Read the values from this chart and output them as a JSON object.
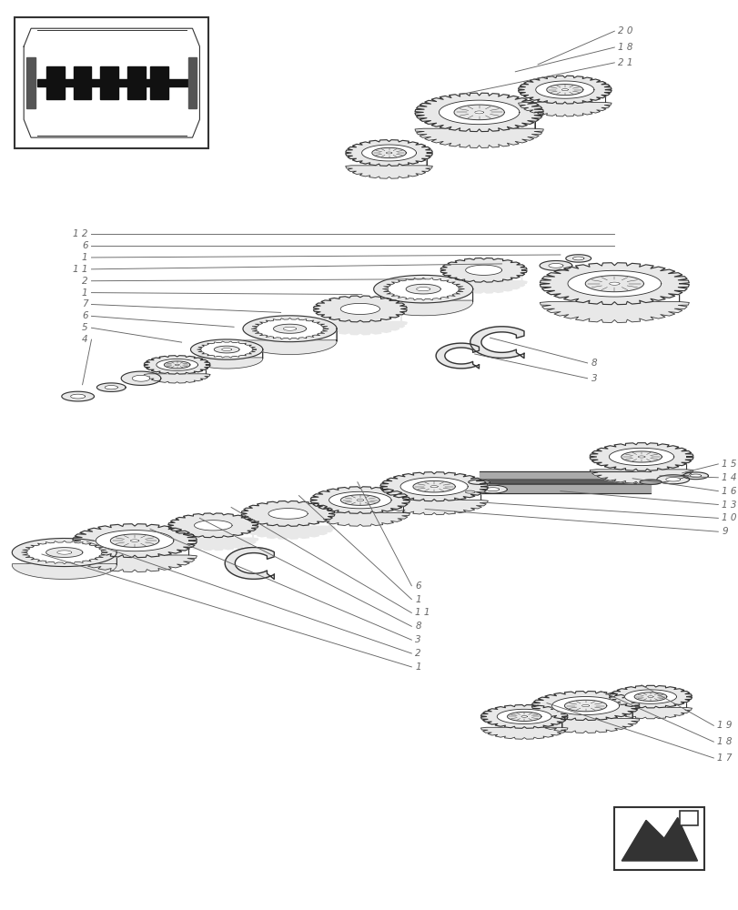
{
  "bg_color": "#ffffff",
  "gear_fill": "#e8e8e8",
  "gear_edge": "#333333",
  "gear_lw": 0.8,
  "text_color": "#666666",
  "text_fontsize": 7.5,
  "figsize": [
    8.12,
    10.0
  ],
  "dpi": 100
}
